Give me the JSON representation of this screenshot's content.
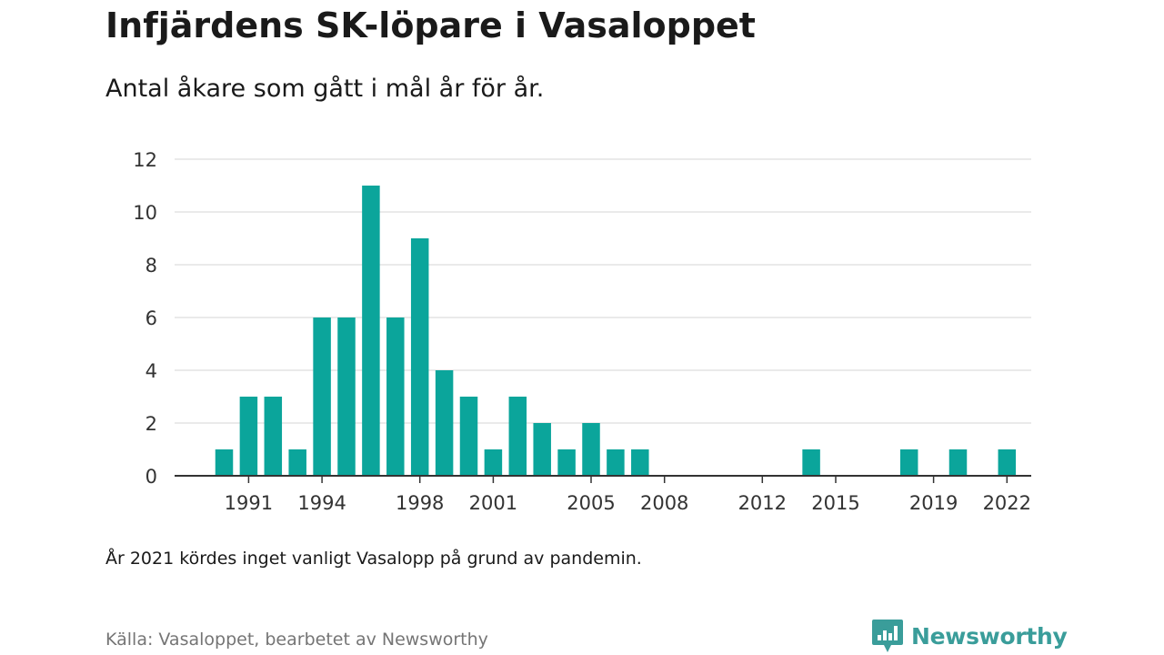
{
  "header": {
    "title": "Infjärdens SK-löpare i Vasaloppet",
    "subtitle": "Antal åkare som gått i mål år för år."
  },
  "footer": {
    "note": "År 2021 kördes inget vanligt Vasalopp på grund av pandemin.",
    "source": "Källa: Vasaloppet, bearbetet av Newsworthy",
    "logo_text": "Newsworthy",
    "logo_icon": "bar-chart-speech-bubble-icon"
  },
  "colors": {
    "bar": "#0ba59b",
    "grid": "#dedede",
    "axis": "#333333",
    "logo": "#3a9d9a"
  },
  "chart_data": {
    "type": "bar",
    "title": "Infjärdens SK-löpare i Vasaloppet",
    "subtitle": "Antal åkare som gått i mål år för år.",
    "xlabel": "",
    "ylabel": "",
    "x": [
      1990,
      1991,
      1992,
      1993,
      1994,
      1995,
      1996,
      1997,
      1998,
      1999,
      2000,
      2001,
      2002,
      2003,
      2004,
      2005,
      2006,
      2007,
      2014,
      2018,
      2020,
      2022
    ],
    "values": [
      1,
      3,
      3,
      1,
      6,
      6,
      11,
      6,
      9,
      4,
      3,
      1,
      3,
      2,
      1,
      2,
      1,
      1,
      1,
      1,
      1,
      1
    ],
    "xlim": [
      1988,
      2023
    ],
    "ylim": [
      0,
      12
    ],
    "y_ticks": [
      0,
      2,
      4,
      6,
      8,
      10,
      12
    ],
    "x_ticks": [
      1991,
      1994,
      1998,
      2001,
      2005,
      2008,
      2012,
      2015,
      2019,
      2022
    ],
    "grid": true,
    "legend": "none"
  }
}
